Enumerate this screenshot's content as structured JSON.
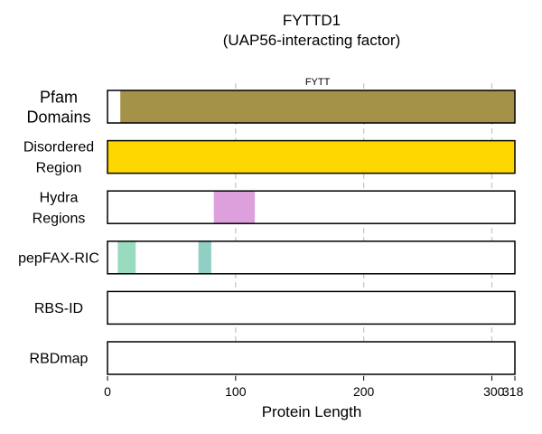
{
  "chart_data": {
    "type": "track",
    "title": "FYTTD1",
    "subtitle": "(UAP56-interacting factor)",
    "xlabel": "Protein Length",
    "xlim": [
      0,
      318
    ],
    "xticks": [
      {
        "value": 0,
        "label": "0"
      },
      {
        "value": 100,
        "label": "100"
      },
      {
        "value": 200,
        "label": "200"
      },
      {
        "value": 300,
        "label": "300"
      },
      {
        "value": 318,
        "label": "318"
      }
    ],
    "gridlines": [
      100,
      200,
      300
    ],
    "tracks": [
      {
        "name": "Pfam\nDomains",
        "segments": [
          {
            "start": 10,
            "end": 318,
            "label": "FYTT",
            "color": "#a39248"
          }
        ]
      },
      {
        "name": "Disordered\nRegion",
        "segments": [
          {
            "start": 0,
            "end": 318,
            "label": "",
            "color": "#ffd700"
          }
        ]
      },
      {
        "name": "Hydra\nRegions",
        "segments": [
          {
            "start": 83,
            "end": 115,
            "label": "",
            "color": "#dda0dd"
          }
        ]
      },
      {
        "name": "pepFAX-RIC",
        "segments": [
          {
            "start": 8,
            "end": 22,
            "label": "",
            "color": "#98dbbf"
          },
          {
            "start": 71,
            "end": 81,
            "label": "",
            "color": "#90d0c4"
          }
        ]
      },
      {
        "name": "RBS-ID",
        "segments": []
      },
      {
        "name": "RBDmap",
        "segments": []
      }
    ]
  }
}
